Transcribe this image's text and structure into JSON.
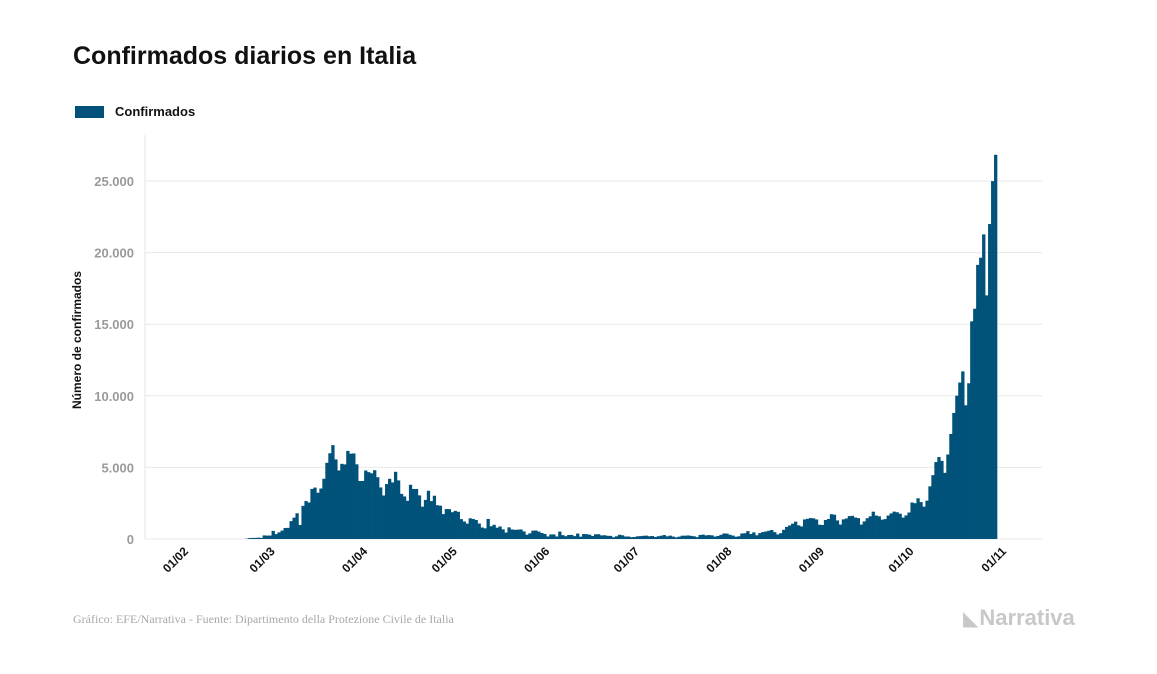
{
  "chart_data": {
    "type": "bar",
    "title": "Confirmados diarios en Italia",
    "legend": [
      "Confirmados"
    ],
    "legend_position": "top-left",
    "xlabel": "",
    "ylabel": "Número de confirmados",
    "ylim": [
      0,
      27500
    ],
    "yticks": [
      0,
      5000,
      10000,
      15000,
      20000,
      25000
    ],
    "ytick_labels": [
      "0",
      "5.000",
      "10.000",
      "15.000",
      "20.000",
      "25.000"
    ],
    "xtick_labels": [
      "01/02",
      "01/03",
      "01/04",
      "01/05",
      "01/06",
      "01/07",
      "01/08",
      "01/09",
      "01/10",
      "01/11"
    ],
    "xtick_day_offsets": [
      0,
      29,
      60,
      90,
      121,
      151,
      182,
      213,
      243,
      274
    ],
    "start_date": "2020-02-01",
    "grid": true,
    "color": "#00527a",
    "values": [
      2,
      0,
      0,
      0,
      0,
      1,
      0,
      0,
      0,
      0,
      0,
      0,
      0,
      0,
      0,
      0,
      0,
      0,
      0,
      0,
      17,
      62,
      76,
      73,
      93,
      78,
      250,
      238,
      240,
      566,
      342,
      466,
      587,
      769,
      778,
      1247,
      1492,
      1797,
      977,
      2313,
      2651,
      2547,
      3497,
      3590,
      3233,
      3526,
      4207,
      5322,
      5986,
      6557,
      5560,
      4789,
      5249,
      5210,
      6153,
      5959,
      5974,
      5217,
      4050,
      4053,
      4782,
      4668,
      4585,
      4805,
      4316,
      3599,
      3039,
      3836,
      4204,
      3951,
      4694,
      4092,
      3153,
      2972,
      2667,
      3786,
      3493,
      3491,
      3047,
      2256,
      2729,
      3370,
      2646,
      3021,
      2357,
      2324,
      1739,
      2091,
      2086,
      1872,
      1965,
      1900,
      1389,
      1221,
      1075,
      1444,
      1401,
      1327,
      1083,
      802,
      744,
      1402,
      888,
      992,
      789,
      875,
      675,
      451,
      813,
      665,
      642,
      652,
      669,
      531,
      300,
      397,
      584,
      593,
      516,
      416,
      355,
      178,
      318,
      321,
      177,
      518,
      270,
      197,
      280,
      283,
      202,
      379,
      163,
      346,
      338,
      301,
      210,
      329,
      333,
      251,
      262,
      224,
      218,
      122,
      190,
      296,
      259,
      175,
      174,
      126,
      142,
      187,
      201,
      223,
      235,
      192,
      208,
      138,
      193,
      229,
      276,
      188,
      234,
      169,
      114,
      162,
      230,
      233,
      249,
      219,
      190,
      129,
      282,
      306,
      252,
      275,
      255,
      170,
      212,
      289,
      386,
      379,
      295,
      239,
      159,
      190,
      384,
      402,
      552,
      347,
      463,
      259,
      412,
      481,
      523,
      574,
      629,
      479,
      320,
      403,
      642,
      845,
      947,
      1071,
      1210,
      953,
      878,
      1367,
      1411,
      1462,
      1444,
      1365,
      996,
      978,
      1326,
      1397,
      1733,
      1695,
      1297,
      1008,
      1370,
      1434,
      1597,
      1616,
      1501,
      1458,
      1008,
      1229,
      1452,
      1585,
      1907,
      1638,
      1587,
      1350,
      1392,
      1640,
      1786,
      1912,
      1869,
      1766,
      1494,
      1648,
      1851,
      2548,
      2499,
      2844,
      2578,
      2257,
      2677,
      3678,
      4458,
      5372,
      5724,
      5456,
      4619,
      5901,
      7332,
      8804,
      10010,
      10925,
      11705,
      9338,
      10874,
      15199,
      16079,
      19143,
      19644,
      21273,
      17012,
      21994,
      24991,
      26831
    ]
  },
  "footer": {
    "source": "Gráfico: EFE/Narrativa - Fuente: Dipartimento della Protezione Civile de Italia",
    "logo": "Narrativa"
  }
}
